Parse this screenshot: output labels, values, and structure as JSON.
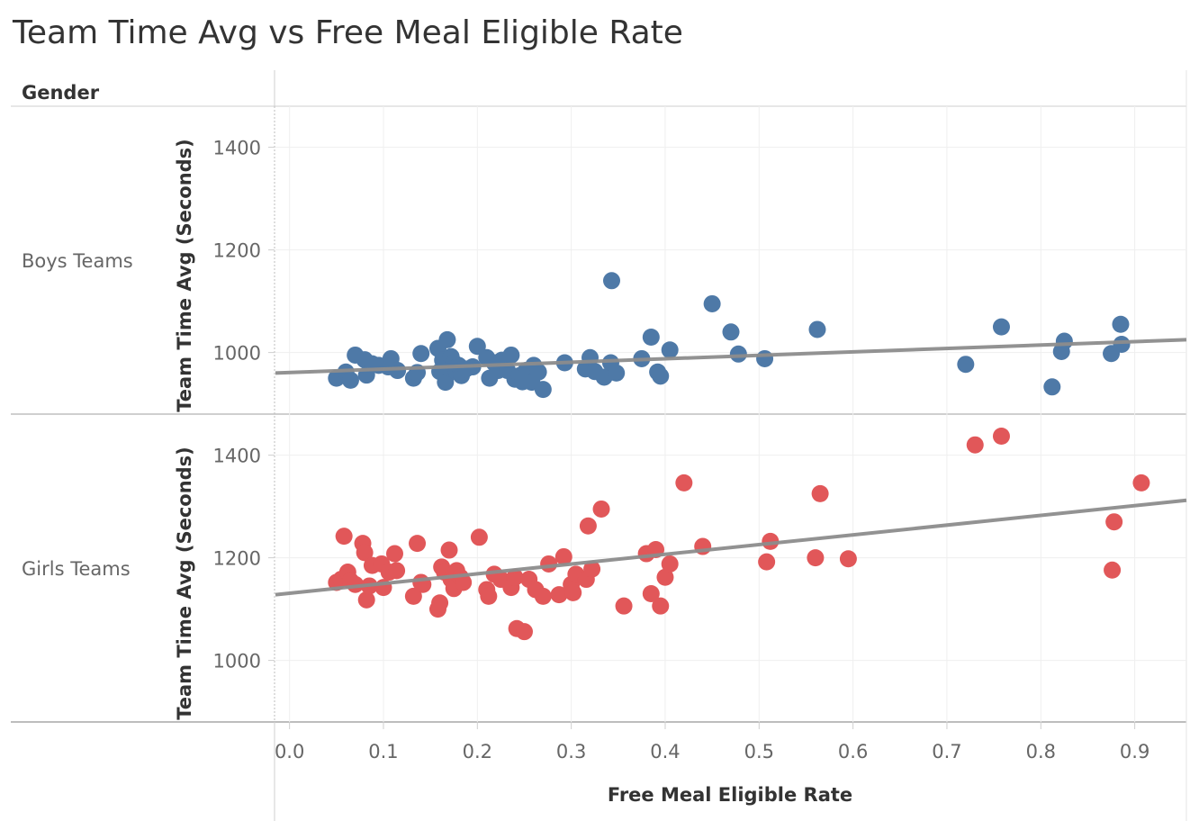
{
  "chart_data": {
    "type": "scatter",
    "title": "Team Time Avg vs Free Meal Eligible Rate",
    "row_header": "Gender",
    "xlabel": "Free Meal Eligible Rate",
    "xlim": [
      -0.015,
      0.955
    ],
    "x_ticks": [
      "0.0",
      "0.1",
      "0.2",
      "0.3",
      "0.4",
      "0.5",
      "0.6",
      "0.7",
      "0.8",
      "0.9"
    ],
    "x_tick_values": [
      0,
      0.1,
      0.2,
      0.3,
      0.4,
      0.5,
      0.6,
      0.7,
      0.8,
      0.9
    ],
    "grid": true,
    "trend_color": "#8c8c8c",
    "panels": [
      {
        "label": "Boys Teams",
        "ylabel": "Team Time Avg (Seconds)",
        "ylim": [
          880,
          1480
        ],
        "y_ticks": [
          "1400",
          "1200",
          "1000"
        ],
        "y_tick_values": [
          1400,
          1200,
          1000
        ],
        "color": "#4e79a7",
        "trend": [
          [
            -0.015,
            960
          ],
          [
            0.955,
            1025
          ]
        ],
        "points": [
          [
            0.05,
            950
          ],
          [
            0.06,
            962
          ],
          [
            0.065,
            946
          ],
          [
            0.07,
            995
          ],
          [
            0.08,
            986
          ],
          [
            0.082,
            956
          ],
          [
            0.088,
            978
          ],
          [
            0.095,
            975
          ],
          [
            0.105,
            972
          ],
          [
            0.108,
            988
          ],
          [
            0.115,
            965
          ],
          [
            0.132,
            950
          ],
          [
            0.136,
            961
          ],
          [
            0.14,
            998
          ],
          [
            0.158,
            1008
          ],
          [
            0.16,
            963
          ],
          [
            0.163,
            985
          ],
          [
            0.166,
            942
          ],
          [
            0.168,
            1025
          ],
          [
            0.17,
            970
          ],
          [
            0.172,
            992
          ],
          [
            0.175,
            980
          ],
          [
            0.178,
            962
          ],
          [
            0.18,
            975
          ],
          [
            0.183,
            955
          ],
          [
            0.188,
            968
          ],
          [
            0.195,
            972
          ],
          [
            0.2,
            1012
          ],
          [
            0.21,
            990
          ],
          [
            0.213,
            950
          ],
          [
            0.218,
            980
          ],
          [
            0.222,
            965
          ],
          [
            0.226,
            985
          ],
          [
            0.232,
            965
          ],
          [
            0.236,
            995
          ],
          [
            0.24,
            948
          ],
          [
            0.245,
            955
          ],
          [
            0.248,
            943
          ],
          [
            0.252,
            965
          ],
          [
            0.258,
            942
          ],
          [
            0.26,
            975
          ],
          [
            0.265,
            962
          ],
          [
            0.27,
            928
          ],
          [
            0.293,
            980
          ],
          [
            0.315,
            968
          ],
          [
            0.32,
            990
          ],
          [
            0.325,
            963
          ],
          [
            0.335,
            952
          ],
          [
            0.342,
            980
          ],
          [
            0.343,
            1140
          ],
          [
            0.348,
            960
          ],
          [
            0.375,
            988
          ],
          [
            0.385,
            1030
          ],
          [
            0.392,
            962
          ],
          [
            0.395,
            954
          ],
          [
            0.405,
            1005
          ],
          [
            0.45,
            1095
          ],
          [
            0.47,
            1040
          ],
          [
            0.478,
            997
          ],
          [
            0.506,
            988
          ],
          [
            0.562,
            1045
          ],
          [
            0.72,
            977
          ],
          [
            0.758,
            1050
          ],
          [
            0.812,
            933
          ],
          [
            0.822,
            1002
          ],
          [
            0.825,
            1022
          ],
          [
            0.875,
            998
          ],
          [
            0.885,
            1055
          ],
          [
            0.886,
            1016
          ]
        ]
      },
      {
        "label": "Girls Teams",
        "ylabel": "Team Time Avg (Seconds)",
        "ylim": [
          880,
          1480
        ],
        "y_ticks": [
          "1400",
          "1200",
          "1000"
        ],
        "y_tick_values": [
          1400,
          1200,
          1000
        ],
        "color": "#e15759",
        "trend": [
          [
            -0.015,
            1128
          ],
          [
            0.955,
            1312
          ]
        ],
        "points": [
          [
            0.05,
            1152
          ],
          [
            0.055,
            1158
          ],
          [
            0.058,
            1242
          ],
          [
            0.062,
            1172
          ],
          [
            0.065,
            1155
          ],
          [
            0.07,
            1148
          ],
          [
            0.078,
            1228
          ],
          [
            0.08,
            1210
          ],
          [
            0.082,
            1118
          ],
          [
            0.085,
            1145
          ],
          [
            0.088,
            1185
          ],
          [
            0.098,
            1188
          ],
          [
            0.1,
            1142
          ],
          [
            0.106,
            1172
          ],
          [
            0.112,
            1208
          ],
          [
            0.114,
            1175
          ],
          [
            0.132,
            1125
          ],
          [
            0.136,
            1228
          ],
          [
            0.14,
            1152
          ],
          [
            0.142,
            1148
          ],
          [
            0.158,
            1100
          ],
          [
            0.16,
            1112
          ],
          [
            0.162,
            1182
          ],
          [
            0.165,
            1172
          ],
          [
            0.17,
            1215
          ],
          [
            0.172,
            1158
          ],
          [
            0.175,
            1140
          ],
          [
            0.178,
            1175
          ],
          [
            0.182,
            1162
          ],
          [
            0.185,
            1152
          ],
          [
            0.202,
            1240
          ],
          [
            0.21,
            1138
          ],
          [
            0.212,
            1125
          ],
          [
            0.218,
            1168
          ],
          [
            0.225,
            1158
          ],
          [
            0.236,
            1142
          ],
          [
            0.24,
            1162
          ],
          [
            0.242,
            1062
          ],
          [
            0.25,
            1056
          ],
          [
            0.255,
            1158
          ],
          [
            0.262,
            1138
          ],
          [
            0.27,
            1125
          ],
          [
            0.276,
            1188
          ],
          [
            0.287,
            1128
          ],
          [
            0.292,
            1202
          ],
          [
            0.3,
            1148
          ],
          [
            0.302,
            1132
          ],
          [
            0.305,
            1168
          ],
          [
            0.316,
            1158
          ],
          [
            0.318,
            1262
          ],
          [
            0.322,
            1178
          ],
          [
            0.332,
            1295
          ],
          [
            0.356,
            1106
          ],
          [
            0.38,
            1208
          ],
          [
            0.385,
            1130
          ],
          [
            0.39,
            1216
          ],
          [
            0.395,
            1106
          ],
          [
            0.4,
            1162
          ],
          [
            0.405,
            1188
          ],
          [
            0.42,
            1346
          ],
          [
            0.44,
            1222
          ],
          [
            0.508,
            1192
          ],
          [
            0.512,
            1232
          ],
          [
            0.56,
            1200
          ],
          [
            0.565,
            1325
          ],
          [
            0.595,
            1198
          ],
          [
            0.73,
            1420
          ],
          [
            0.758,
            1437
          ],
          [
            0.876,
            1176
          ],
          [
            0.878,
            1270
          ],
          [
            0.907,
            1346
          ]
        ]
      }
    ]
  }
}
